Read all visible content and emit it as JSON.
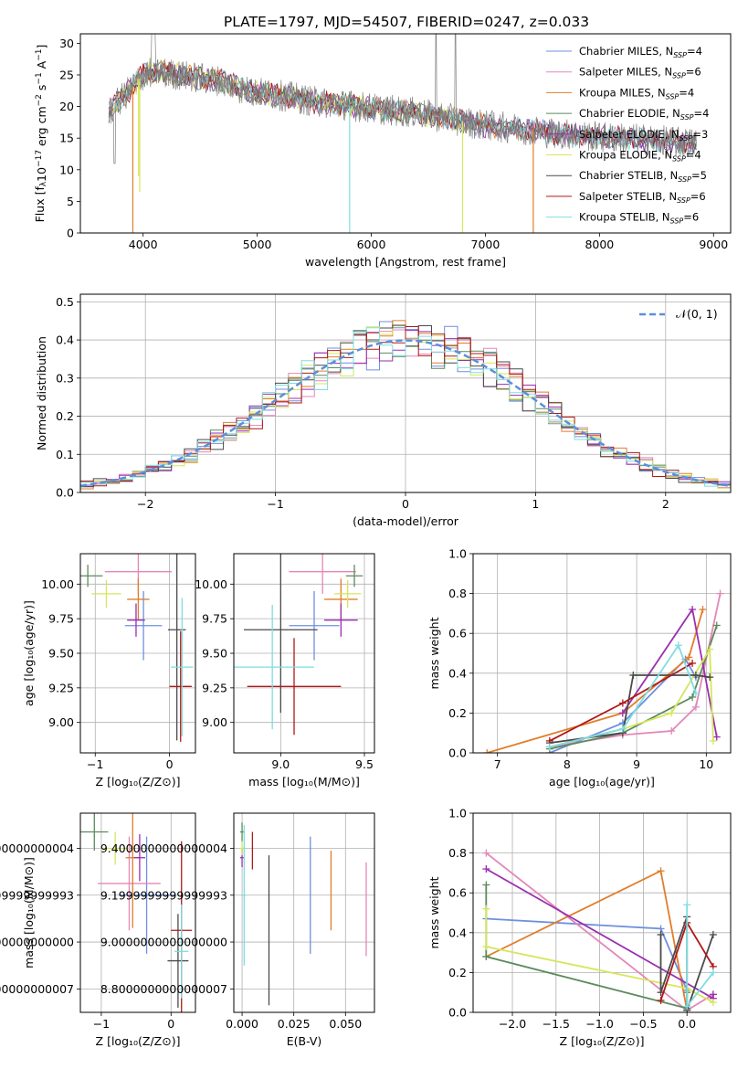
{
  "figure_title": "PLATE=1797, MJD=54507, FIBERID=0247, z=0.033",
  "model_colors": [
    "#6f8fdf",
    "#e387b8",
    "#e07e2a",
    "#5c8a5c",
    "#9a2fb0",
    "#d6e65a",
    "#4a4a4a",
    "#b01818",
    "#7fdde0"
  ],
  "chart_data": [
    {
      "id": "spectrum",
      "type": "line",
      "xlabel": "wavelength [Angstrom, rest frame]",
      "ylabel": "Flux [f_λ 10^-17 erg cm^-2 s^-1 A^-1]",
      "xlim": [
        3450,
        9150
      ],
      "ylim": [
        0,
        31.5
      ],
      "xticks": [
        4000,
        5000,
        6000,
        7000,
        8000,
        9000
      ],
      "yticks": [
        0,
        5,
        10,
        15,
        20,
        25,
        30
      ],
      "grid": false,
      "legend_position": "upper-right",
      "legend_labels": [
        [
          "Chabrier MILES, N",
          "SSP",
          "=4"
        ],
        [
          "Salpeter MILES, N",
          "SSP",
          "=6"
        ],
        [
          "Kroupa MILES, N",
          "SSP",
          "=4"
        ],
        [
          "Chabrier ELODIE, N",
          "SSP",
          "=4"
        ],
        [
          "Salpeter ELODIE, N",
          "SSP",
          "=3"
        ],
        [
          "Kroupa ELODIE, N",
          "SSP",
          "=4"
        ],
        [
          "Chabrier STELIB, N",
          "SSP",
          "=5"
        ],
        [
          "Salpeter STELIB, N",
          "SSP",
          "=6"
        ],
        [
          "Kroupa STELIB, N",
          "SSP",
          "=6"
        ]
      ],
      "data_series_color": "#808080",
      "envelope": {
        "x": [
          3700,
          3800,
          3900,
          4000,
          4100,
          4300,
          4500,
          4700,
          4900,
          5100,
          5300,
          5500,
          5800,
          6100,
          6400,
          6700,
          7000,
          7300,
          7600,
          8000,
          8400,
          8800
        ],
        "y": [
          19,
          21,
          23,
          25,
          25.5,
          25,
          24.5,
          24,
          22.5,
          22,
          21.5,
          20.8,
          20.2,
          19.5,
          19,
          18,
          17,
          16.5,
          15.8,
          15.2,
          14.8,
          14.2
        ]
      },
      "dips": [
        {
          "x": 3910,
          "y": 0,
          "color_index": 2
        },
        {
          "x": 3960,
          "y": 9,
          "color_index": 5
        },
        {
          "x": 3970,
          "y": 6.5,
          "color_index": 5
        },
        {
          "x": 5810,
          "y": 0,
          "color_index": 8
        },
        {
          "x": 6800,
          "y": 0,
          "color_index": 5
        },
        {
          "x": 7420,
          "y": 0,
          "color_index": 2
        }
      ]
    },
    {
      "id": "residuals",
      "type": "histogram",
      "xlabel": "(data-model)/error",
      "ylabel": "Normed distribution",
      "xlim": [
        -2.5,
        2.5
      ],
      "ylim": [
        0,
        0.52
      ],
      "xticks": [
        -2,
        -1,
        0,
        1,
        2
      ],
      "yticks": [
        0.0,
        0.1,
        0.2,
        0.3,
        0.4,
        0.5
      ],
      "grid": true,
      "bins": 50,
      "legend_label": "𝒩(0, 1)",
      "legend_position": "upper-right",
      "reference_curve": "normal(0,1)"
    },
    {
      "id": "age_vs_Z",
      "type": "errorbar",
      "xlabel": "Z [log₁₀(Z/Z⊙)]",
      "ylabel": "age  [log₁₀(age/yr)]",
      "xlim": [
        -1.2,
        0.35
      ],
      "ylim": [
        8.78,
        10.22
      ],
      "xticks": [
        -1,
        0
      ],
      "yticks": [
        9.0,
        9.25,
        9.5,
        9.75,
        10.0
      ],
      "grid": true,
      "points": [
        {
          "c": 0,
          "x": -0.35,
          "xerr": 0.25,
          "y": 9.7,
          "yerr": 0.25
        },
        {
          "c": 1,
          "x": -0.42,
          "xerr": 0.45,
          "y": 10.09,
          "yerr": 0.16
        },
        {
          "c": 2,
          "x": -0.42,
          "xerr": 0.15,
          "y": 9.89,
          "yerr": 0.15
        },
        {
          "c": 3,
          "x": -1.1,
          "xerr": 0.2,
          "y": 10.06,
          "yerr": 0.08
        },
        {
          "c": 4,
          "x": -0.45,
          "xerr": 0.12,
          "y": 9.74,
          "yerr": 0.12
        },
        {
          "c": 5,
          "x": -0.85,
          "xerr": 0.2,
          "y": 9.93,
          "yerr": 0.1
        },
        {
          "c": 6,
          "x": 0.1,
          "xerr": 0.12,
          "y": 9.67,
          "yerr": 0.8
        },
        {
          "c": 7,
          "x": 0.15,
          "xerr": 0.15,
          "y": 9.26,
          "yerr": 0.4
        },
        {
          "c": 8,
          "x": 0.17,
          "xerr": 0.15,
          "y": 9.4,
          "yerr": 0.5
        }
      ]
    },
    {
      "id": "age_vs_mass",
      "type": "errorbar",
      "xlabel": "mass [log₁₀(M/M⊙)]",
      "ylabel": "",
      "xlim": [
        8.72,
        9.56
      ],
      "ylim": [
        8.78,
        10.22
      ],
      "xticks": [
        9.0,
        9.5
      ],
      "yticks": [
        9.0,
        9.25,
        9.5,
        9.75,
        10.0
      ],
      "grid": true,
      "points": [
        {
          "c": 0,
          "x": 9.2,
          "xerr": 0.15,
          "y": 9.7,
          "yerr": 0.25
        },
        {
          "c": 1,
          "x": 9.25,
          "xerr": 0.2,
          "y": 10.09,
          "yerr": 0.16
        },
        {
          "c": 2,
          "x": 9.36,
          "xerr": 0.1,
          "y": 9.89,
          "yerr": 0.15
        },
        {
          "c": 3,
          "x": 9.44,
          "xerr": 0.05,
          "y": 10.06,
          "yerr": 0.08
        },
        {
          "c": 4,
          "x": 9.36,
          "xerr": 0.1,
          "y": 9.74,
          "yerr": 0.12
        },
        {
          "c": 5,
          "x": 9.4,
          "xerr": 0.08,
          "y": 9.93,
          "yerr": 0.1
        },
        {
          "c": 6,
          "x": 9.0,
          "xerr": 0.22,
          "y": 9.67,
          "yerr": 0.6
        },
        {
          "c": 7,
          "x": 9.08,
          "xerr": 0.28,
          "y": 9.26,
          "yerr": 0.35
        },
        {
          "c": 8,
          "x": 8.95,
          "xerr": 0.25,
          "y": 9.4,
          "yerr": 0.45
        }
      ]
    },
    {
      "id": "massweight_vs_age",
      "type": "line",
      "xlabel": "age  [log₁₀(age/yr)]",
      "ylabel": "mass weight",
      "xlim": [
        6.65,
        10.35
      ],
      "ylim": [
        0,
        1.0
      ],
      "xticks": [
        7,
        8,
        9,
        10
      ],
      "yticks": [
        0.0,
        0.2,
        0.4,
        0.6,
        0.8,
        1.0
      ],
      "grid": true,
      "series": [
        {
          "c": 0,
          "x": [
            7.75,
            8.8,
            9.7,
            9.85
          ],
          "y": [
            0.0,
            0.15,
            0.47,
            0.38
          ]
        },
        {
          "c": 1,
          "x": [
            7.75,
            8.8,
            9.5,
            9.85,
            10.2
          ],
          "y": [
            0.03,
            0.09,
            0.11,
            0.23,
            0.8
          ]
        },
        {
          "c": 2,
          "x": [
            6.85,
            8.8,
            9.75,
            9.95
          ],
          "y": [
            0.0,
            0.2,
            0.48,
            0.72
          ]
        },
        {
          "c": 3,
          "x": [
            7.75,
            8.8,
            9.8,
            10.15
          ],
          "y": [
            0.02,
            0.1,
            0.28,
            0.64
          ]
        },
        {
          "c": 4,
          "x": [
            8.8,
            9.8,
            10.15
          ],
          "y": [
            0.2,
            0.72,
            0.08
          ]
        },
        {
          "c": 5,
          "x": [
            7.75,
            8.8,
            9.5,
            10.05,
            10.1
          ],
          "y": [
            0.03,
            0.12,
            0.2,
            0.52,
            0.06
          ]
        },
        {
          "c": 6,
          "x": [
            7.75,
            8.8,
            8.95,
            9.85,
            10.05
          ],
          "y": [
            0.05,
            0.1,
            0.39,
            0.39,
            0.38
          ]
        },
        {
          "c": 7,
          "x": [
            7.75,
            8.8,
            9.8
          ],
          "y": [
            0.06,
            0.25,
            0.45
          ]
        },
        {
          "c": 8,
          "x": [
            7.75,
            8.8,
            9.6,
            9.85
          ],
          "y": [
            0.03,
            0.12,
            0.54,
            0.3
          ]
        }
      ]
    },
    {
      "id": "mass_vs_Z",
      "type": "errorbar",
      "xlabel": "Z [log₁₀(Z/Z⊙)]",
      "ylabel": "mass [log₁₀(M/M⊙)]",
      "xlim": [
        -1.3,
        0.35
      ],
      "ylim": [
        8.7,
        9.55
      ],
      "xticks": [
        -1,
        0
      ],
      "yticks": [
        8.8,
        9.0,
        9.2,
        9.4
      ],
      "grid": true,
      "points": [
        {
          "c": 0,
          "x": -0.35,
          "xerr": 0.4,
          "y": 9.2,
          "yerr": 0.25
        },
        {
          "c": 1,
          "x": -0.6,
          "xerr": 0.45,
          "y": 9.25,
          "yerr": 0.2
        },
        {
          "c": 2,
          "x": -0.55,
          "xerr": 0.1,
          "y": 9.36,
          "yerr": 0.3
        },
        {
          "c": 3,
          "x": -1.1,
          "xerr": 0.2,
          "y": 9.47,
          "yerr": 0.08
        },
        {
          "c": 4,
          "x": -0.45,
          "xerr": 0.08,
          "y": 9.36,
          "yerr": 0.1
        },
        {
          "c": 5,
          "x": -0.8,
          "xerr": 0.2,
          "y": 9.4,
          "yerr": 0.07
        },
        {
          "c": 6,
          "x": 0.1,
          "xerr": 0.15,
          "y": 8.92,
          "yerr": 0.2
        },
        {
          "c": 7,
          "x": 0.15,
          "xerr": 0.15,
          "y": 9.05,
          "yerr": 0.38
        },
        {
          "c": 8,
          "x": 0.15,
          "xerr": 0.1,
          "y": 8.96,
          "yerr": 0.2
        }
      ]
    },
    {
      "id": "mass_vs_EBV",
      "type": "errorbar",
      "xlabel": "E(B-V)",
      "ylabel": "",
      "xlim": [
        -0.004,
        0.064
      ],
      "ylim": [
        8.7,
        9.55
      ],
      "xticks": [
        0.0,
        0.025,
        0.05
      ],
      "yticks": [
        8.8,
        9.0,
        9.2,
        9.4
      ],
      "grid": true,
      "points": [
        {
          "c": 0,
          "x": 0.033,
          "xerr": 0,
          "y": 9.2,
          "yerr": 0.25
        },
        {
          "c": 1,
          "x": 0.06,
          "xerr": 0,
          "y": 9.14,
          "yerr": 0.2
        },
        {
          "c": 2,
          "x": 0.043,
          "xerr": 0,
          "y": 9.22,
          "yerr": 0.17
        },
        {
          "c": 3,
          "x": 0.0,
          "xerr": 0.001,
          "y": 9.47,
          "yerr": 0.04
        },
        {
          "c": 4,
          "x": 0.0,
          "xerr": 0.001,
          "y": 9.36,
          "yerr": 0.04
        },
        {
          "c": 5,
          "x": 0.0,
          "xerr": 0.001,
          "y": 9.4,
          "yerr": 0.03
        },
        {
          "c": 6,
          "x": 0.013,
          "xerr": 0,
          "y": 9.05,
          "yerr": 0.32
        },
        {
          "c": 7,
          "x": 0.005,
          "xerr": 0,
          "y": 9.39,
          "yerr": 0.08
        },
        {
          "c": 8,
          "x": 0.001,
          "xerr": 0.001,
          "y": 9.2,
          "yerr": 0.3
        }
      ]
    },
    {
      "id": "massweight_vs_Z",
      "type": "line",
      "xlabel": "Z [log₁₀(Z/Z⊙)]",
      "ylabel": "mass weight",
      "xlim": [
        -2.45,
        0.5
      ],
      "ylim": [
        0,
        1.0
      ],
      "xticks": [
        -2.0,
        -1.5,
        -1.0,
        -0.5,
        0.0
      ],
      "yticks": [
        0.0,
        0.2,
        0.4,
        0.6,
        0.8,
        1.0
      ],
      "grid": true,
      "series": [
        {
          "c": 0,
          "x": [
            -2.3,
            -0.3,
            0.0
          ],
          "y": [
            0.47,
            0.42,
            0.11
          ]
        },
        {
          "c": 1,
          "x": [
            -2.3,
            0.0,
            0.3
          ],
          "y": [
            0.8,
            0.01,
            0.09
          ]
        },
        {
          "c": 2,
          "x": [
            -2.3,
            -0.3,
            0.0
          ],
          "y": [
            0.28,
            0.71,
            0.01
          ]
        },
        {
          "c": 3,
          "x": [
            -2.3,
            -2.3,
            0.0,
            0.0
          ],
          "y": [
            0.64,
            0.28,
            0.02,
            0.1
          ]
        },
        {
          "c": 4,
          "x": [
            -2.3,
            0.3,
            0.3
          ],
          "y": [
            0.72,
            0.07,
            0.09
          ]
        },
        {
          "c": 5,
          "x": [
            -2.3,
            -2.3,
            0.0,
            0.3
          ],
          "y": [
            0.52,
            0.33,
            0.12,
            0.05
          ]
        },
        {
          "c": 6,
          "x": [
            -0.3,
            -0.3,
            0.0,
            0.0,
            0.3
          ],
          "y": [
            0.39,
            0.1,
            0.48,
            0.01,
            0.39
          ]
        },
        {
          "c": 7,
          "x": [
            -0.3,
            0.0,
            0.3
          ],
          "y": [
            0.06,
            0.45,
            0.23
          ]
        },
        {
          "c": 8,
          "x": [
            0.0,
            0.0,
            0.3
          ],
          "y": [
            0.54,
            0.03,
            0.2
          ]
        }
      ]
    }
  ]
}
